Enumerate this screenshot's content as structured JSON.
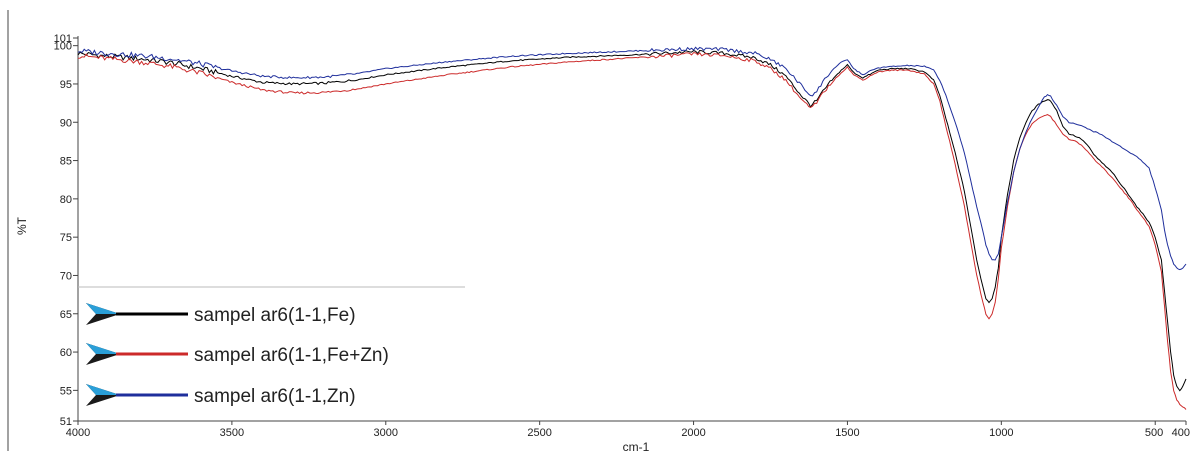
{
  "chart_data": {
    "type": "line",
    "xlabel": "cm-1",
    "ylabel": "%T",
    "xlim": [
      4000,
      400
    ],
    "ylim": [
      51,
      101
    ],
    "x_reversed": true,
    "grid": false,
    "legend_position": "bottom-left",
    "x_ticks": [
      {
        "value": 4000,
        "label": "4000"
      },
      {
        "value": 3500,
        "label": "3500"
      },
      {
        "value": 3000,
        "label": "3000"
      },
      {
        "value": 2500,
        "label": "2500"
      },
      {
        "value": 2000,
        "label": "2000"
      },
      {
        "value": 1500,
        "label": "1500"
      },
      {
        "value": 1000,
        "label": "1000"
      },
      {
        "value": 500,
        "label": "500"
      },
      {
        "value": 400,
        "label": "400"
      }
    ],
    "y_ticks": [
      {
        "value": 51,
        "label": "51"
      },
      {
        "value": 55,
        "label": "55"
      },
      {
        "value": 60,
        "label": "60"
      },
      {
        "value": 65,
        "label": "65"
      },
      {
        "value": 70,
        "label": "70"
      },
      {
        "value": 75,
        "label": "75"
      },
      {
        "value": 80,
        "label": "80"
      },
      {
        "value": 85,
        "label": "85"
      },
      {
        "value": 90,
        "label": "90"
      },
      {
        "value": 95,
        "label": "95"
      },
      {
        "value": 100,
        "label": "100"
      },
      {
        "value": 101,
        "label": "101"
      }
    ],
    "series": [
      {
        "name": "sampel ar6(1-1,Fe)",
        "color": "#000000",
        "x": [
          4000,
          3900,
          3800,
          3700,
          3600,
          3500,
          3400,
          3300,
          3200,
          3100,
          3000,
          2800,
          2600,
          2400,
          2200,
          2000,
          1900,
          1800,
          1750,
          1700,
          1650,
          1620,
          1600,
          1580,
          1550,
          1520,
          1500,
          1480,
          1450,
          1420,
          1400,
          1350,
          1300,
          1250,
          1220,
          1200,
          1180,
          1150,
          1120,
          1100,
          1080,
          1060,
          1050,
          1040,
          1030,
          1020,
          1010,
          1000,
          980,
          960,
          940,
          920,
          900,
          880,
          860,
          850,
          840,
          820,
          800,
          780,
          760,
          740,
          720,
          700,
          680,
          660,
          640,
          620,
          600,
          580,
          560,
          540,
          520,
          500,
          480,
          470,
          460,
          450,
          440,
          430,
          420,
          410,
          400
        ],
        "y": [
          99.0,
          98.6,
          98.3,
          97.8,
          97.0,
          96.0,
          95.2,
          95.0,
          95.1,
          95.5,
          96.2,
          97.2,
          98.0,
          98.5,
          98.8,
          99.2,
          99.0,
          98.4,
          97.5,
          96.0,
          93.5,
          92.2,
          92.8,
          94.0,
          95.5,
          96.8,
          97.5,
          96.5,
          95.8,
          96.4,
          96.8,
          97.0,
          97.0,
          96.6,
          95.5,
          93.5,
          90.5,
          86.0,
          81.0,
          76.5,
          72.0,
          68.5,
          67.0,
          66.5,
          67.0,
          68.5,
          71.0,
          75.0,
          80.5,
          85.0,
          88.0,
          90.0,
          91.5,
          92.3,
          92.8,
          93.0,
          92.8,
          91.5,
          89.5,
          88.5,
          88.2,
          87.8,
          87.0,
          85.8,
          85.0,
          84.2,
          83.5,
          82.3,
          81.3,
          80.2,
          79.0,
          78.0,
          77.0,
          75.0,
          72.0,
          68.0,
          64.0,
          60.0,
          57.0,
          55.5,
          55.0,
          55.5,
          56.5
        ]
      },
      {
        "name": "sampel ar6(1-1,Fe+Zn)",
        "color": "#cc2a2a",
        "x": [
          4000,
          3900,
          3800,
          3700,
          3600,
          3500,
          3400,
          3300,
          3200,
          3100,
          3000,
          2800,
          2600,
          2400,
          2200,
          2000,
          1900,
          1800,
          1750,
          1700,
          1650,
          1620,
          1600,
          1580,
          1550,
          1520,
          1500,
          1480,
          1450,
          1420,
          1400,
          1350,
          1300,
          1250,
          1220,
          1200,
          1180,
          1150,
          1120,
          1100,
          1080,
          1060,
          1050,
          1040,
          1030,
          1020,
          1010,
          1000,
          980,
          960,
          940,
          920,
          900,
          880,
          860,
          850,
          840,
          820,
          800,
          780,
          760,
          740,
          720,
          700,
          680,
          660,
          640,
          620,
          600,
          580,
          560,
          540,
          520,
          500,
          480,
          470,
          460,
          450,
          440,
          430,
          420,
          410,
          400
        ],
        "y": [
          98.7,
          98.3,
          97.9,
          97.3,
          96.4,
          95.2,
          94.2,
          93.8,
          93.9,
          94.3,
          95.0,
          96.2,
          97.2,
          97.9,
          98.4,
          98.9,
          98.7,
          98.0,
          97.0,
          95.5,
          93.0,
          91.8,
          92.5,
          93.8,
          95.2,
          96.5,
          97.2,
          96.2,
          95.5,
          96.2,
          96.6,
          96.8,
          96.8,
          96.3,
          95.0,
          92.8,
          89.5,
          84.5,
          79.0,
          74.5,
          70.0,
          66.5,
          65.0,
          64.3,
          65.0,
          66.5,
          69.5,
          73.5,
          79.0,
          83.5,
          86.5,
          88.5,
          89.8,
          90.5,
          90.8,
          91.0,
          90.8,
          89.6,
          88.5,
          87.8,
          87.5,
          87.0,
          86.2,
          85.2,
          84.5,
          83.6,
          82.8,
          81.8,
          80.8,
          79.8,
          78.6,
          77.6,
          76.4,
          74.0,
          70.5,
          66.0,
          61.5,
          57.5,
          55.0,
          53.8,
          53.2,
          52.8,
          52.5
        ]
      },
      {
        "name": "sampel ar6(1-1,Zn)",
        "color": "#1f2f9c",
        "x": [
          4000,
          3900,
          3800,
          3700,
          3600,
          3500,
          3400,
          3300,
          3200,
          3100,
          3000,
          2800,
          2600,
          2400,
          2200,
          2000,
          1900,
          1800,
          1750,
          1700,
          1650,
          1620,
          1600,
          1580,
          1550,
          1520,
          1500,
          1480,
          1450,
          1420,
          1400,
          1350,
          1300,
          1250,
          1220,
          1200,
          1180,
          1150,
          1120,
          1100,
          1080,
          1060,
          1050,
          1040,
          1030,
          1020,
          1010,
          1000,
          980,
          960,
          940,
          920,
          900,
          880,
          860,
          850,
          840,
          820,
          800,
          780,
          760,
          740,
          720,
          700,
          680,
          660,
          640,
          620,
          600,
          580,
          560,
          540,
          520,
          500,
          480,
          470,
          460,
          450,
          440,
          430,
          420,
          410,
          400
        ],
        "y": [
          99.3,
          99.0,
          98.7,
          98.3,
          97.6,
          96.7,
          96.0,
          95.8,
          95.9,
          96.3,
          97.0,
          97.9,
          98.6,
          99.0,
          99.3,
          99.6,
          99.5,
          99.0,
          98.2,
          97.0,
          94.8,
          93.5,
          94.0,
          95.3,
          96.8,
          97.8,
          98.2,
          97.0,
          96.2,
          96.8,
          97.1,
          97.3,
          97.4,
          97.3,
          96.8,
          95.5,
          93.5,
          90.0,
          86.0,
          82.5,
          79.0,
          75.8,
          74.0,
          72.8,
          72.0,
          72.0,
          72.8,
          75.0,
          79.5,
          83.5,
          86.5,
          88.8,
          90.5,
          92.0,
          93.3,
          93.6,
          93.4,
          92.2,
          90.8,
          90.0,
          89.8,
          89.5,
          89.2,
          88.8,
          88.5,
          88.0,
          87.5,
          87.0,
          86.5,
          86.0,
          85.5,
          84.8,
          84.0,
          81.5,
          78.5,
          76.0,
          74.0,
          72.5,
          71.5,
          71.0,
          70.8,
          71.0,
          71.5
        ]
      }
    ]
  }
}
